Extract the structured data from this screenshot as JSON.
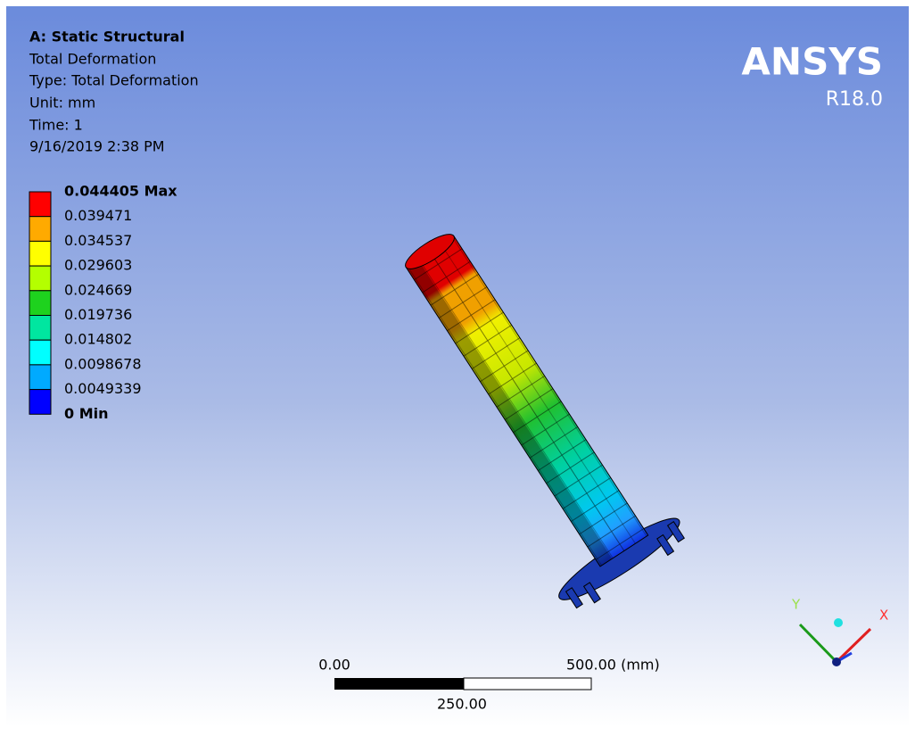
{
  "header": {
    "lines": [
      "A: Static Structural",
      "Total Deformation",
      "Type: Total Deformation",
      "Unit: mm",
      "Time: 1",
      "9/16/2019 2:38 PM"
    ]
  },
  "legend": {
    "labels": [
      "0.044405 Max",
      "0.039471",
      "0.034537",
      "0.029603",
      "0.024669",
      "0.019736",
      "0.014802",
      "0.0098678",
      "0.0049339",
      "0 Min"
    ],
    "colors": [
      "#ff0000",
      "#ffaa00",
      "#ffff00",
      "#b4ff00",
      "#1ed21e",
      "#00e6a0",
      "#00ffff",
      "#00aaff",
      "#0000ff"
    ]
  },
  "logo": {
    "name": "ANSYS",
    "version": "R18.0"
  },
  "scale_bar": {
    "left": "0.00",
    "right": "500.00 (mm)",
    "middle": "250.00"
  },
  "triad": {
    "x": "X",
    "y": "Y"
  }
}
